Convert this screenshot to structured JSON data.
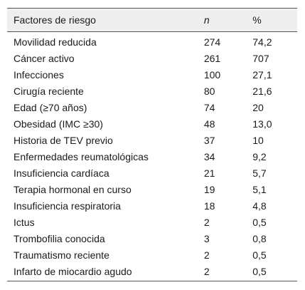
{
  "table": {
    "headers": {
      "factor": "Factores de riesgo",
      "n": "n",
      "pct": "%"
    },
    "rows": [
      {
        "factor": "Movilidad reducida",
        "n": "274",
        "pct": "74,2"
      },
      {
        "factor": "Cáncer activo",
        "n": "261",
        "pct": "707"
      },
      {
        "factor": "Infecciones",
        "n": "100",
        "pct": "27,1"
      },
      {
        "factor": "Cirugía reciente",
        "n": "80",
        "pct": "21,6"
      },
      {
        "factor": "Edad (≥70 años)",
        "n": "74",
        "pct": "20"
      },
      {
        "factor": "Obesidad (IMC ≥30)",
        "n": "48",
        "pct": "13,0"
      },
      {
        "factor": "Historia de TEV previo",
        "n": "37",
        "pct": "10"
      },
      {
        "factor": "Enfermedades reumatológicas",
        "n": "34",
        "pct": "9,2"
      },
      {
        "factor": "Insuficiencia cardíaca",
        "n": "21",
        "pct": "5,7"
      },
      {
        "factor": "Terapia hormonal en curso",
        "n": "19",
        "pct": "5,1"
      },
      {
        "factor": "Insuficiencia respiratoria",
        "n": "18",
        "pct": "4,8"
      },
      {
        "factor": "Ictus",
        "n": "2",
        "pct": "0,5"
      },
      {
        "factor": "Trombofilia conocida",
        "n": "3",
        "pct": "0,8"
      },
      {
        "factor": "Traumatismo reciente",
        "n": "2",
        "pct": "0,5"
      },
      {
        "factor": "Infarto de miocardio agudo",
        "n": "2",
        "pct": "0,5"
      }
    ]
  }
}
